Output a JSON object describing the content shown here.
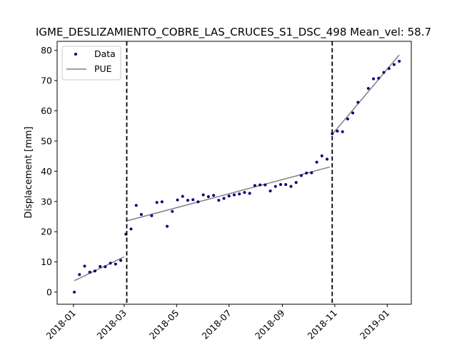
{
  "chart_data": {
    "type": "scatter",
    "title": "IGME_DESLIZAMIENTO_COBRE_LAS_CRUCES_S1_DSC_498     Mean_vel: 58.7",
    "xlabel": "",
    "ylabel": "Displacement [mm]",
    "xlim": [
      "2017-12-13",
      "2019-01-29"
    ],
    "ylim": [
      -4,
      83
    ],
    "grid": false,
    "legend_position": "top-left",
    "x_ticks": [
      "2018-01",
      "2018-03",
      "2018-05",
      "2018-07",
      "2018-09",
      "2018-11",
      "2019-01"
    ],
    "y_ticks": [
      0,
      10,
      20,
      30,
      40,
      50,
      60,
      70,
      80
    ],
    "legend": [
      {
        "label": "Data",
        "marker": "dot",
        "color": "#000080"
      },
      {
        "label": "PUE",
        "marker": "line",
        "color": "#808080"
      }
    ],
    "breakpoints": [
      "2018-03-04",
      "2018-10-29"
    ],
    "series": [
      {
        "name": "Data",
        "color": "#000080",
        "points": [
          [
            "2018-01-02",
            0.0
          ],
          [
            "2018-01-08",
            5.8
          ],
          [
            "2018-01-14",
            8.6
          ],
          [
            "2018-01-20",
            6.6
          ],
          [
            "2018-01-26",
            7.0
          ],
          [
            "2018-02-01",
            8.5
          ],
          [
            "2018-02-07",
            8.4
          ],
          [
            "2018-02-13",
            9.6
          ],
          [
            "2018-02-19",
            9.3
          ],
          [
            "2018-02-25",
            10.5
          ],
          [
            "2018-03-03",
            19.2
          ],
          [
            "2018-03-09",
            20.9
          ],
          [
            "2018-03-15",
            28.7
          ],
          [
            "2018-03-21",
            25.7
          ],
          [
            "2018-04-02",
            25.3
          ],
          [
            "2018-04-08",
            29.7
          ],
          [
            "2018-04-14",
            29.9
          ],
          [
            "2018-04-20",
            21.8
          ],
          [
            "2018-04-26",
            26.7
          ],
          [
            "2018-05-02",
            30.5
          ],
          [
            "2018-05-08",
            31.7
          ],
          [
            "2018-05-14",
            30.4
          ],
          [
            "2018-05-20",
            30.6
          ],
          [
            "2018-05-26",
            29.9
          ],
          [
            "2018-06-01",
            32.2
          ],
          [
            "2018-06-07",
            31.6
          ],
          [
            "2018-06-13",
            32.0
          ],
          [
            "2018-06-19",
            30.4
          ],
          [
            "2018-06-25",
            31.0
          ],
          [
            "2018-07-01",
            31.8
          ],
          [
            "2018-07-07",
            32.2
          ],
          [
            "2018-07-13",
            32.5
          ],
          [
            "2018-07-19",
            33.0
          ],
          [
            "2018-07-25",
            32.7
          ],
          [
            "2018-07-31",
            35.3
          ],
          [
            "2018-08-06",
            35.5
          ],
          [
            "2018-08-12",
            35.5
          ],
          [
            "2018-08-18",
            33.5
          ],
          [
            "2018-08-24",
            35.0
          ],
          [
            "2018-08-30",
            35.6
          ],
          [
            "2018-09-05",
            35.6
          ],
          [
            "2018-09-11",
            35.0
          ],
          [
            "2018-09-17",
            36.3
          ],
          [
            "2018-09-23",
            38.6
          ],
          [
            "2018-09-29",
            39.4
          ],
          [
            "2018-10-05",
            39.5
          ],
          [
            "2018-10-11",
            43.0
          ],
          [
            "2018-10-17",
            45.1
          ],
          [
            "2018-10-23",
            44.0
          ],
          [
            "2018-10-29",
            52.4
          ],
          [
            "2018-11-04",
            53.3
          ],
          [
            "2018-11-10",
            53.1
          ],
          [
            "2018-11-16",
            57.3
          ],
          [
            "2018-11-22",
            59.3
          ],
          [
            "2018-11-28",
            62.8
          ],
          [
            "2018-12-10",
            67.4
          ],
          [
            "2018-12-16",
            70.6
          ],
          [
            "2018-12-22",
            70.8
          ],
          [
            "2018-12-28",
            72.7
          ],
          [
            "2019-01-03",
            74.0
          ],
          [
            "2019-01-09",
            75.3
          ],
          [
            "2019-01-15",
            76.4
          ]
        ]
      },
      {
        "name": "PUE",
        "color": "#808080",
        "segments": [
          [
            [
              "2018-01-02",
              3.8
            ],
            [
              "2018-03-01",
              11.7
            ]
          ],
          [
            [
              "2018-03-03",
              23.5
            ],
            [
              "2018-10-26",
              41.4
            ]
          ],
          [
            [
              "2018-10-29",
              52.2
            ],
            [
              "2019-01-15",
              78.5
            ]
          ]
        ]
      }
    ]
  }
}
